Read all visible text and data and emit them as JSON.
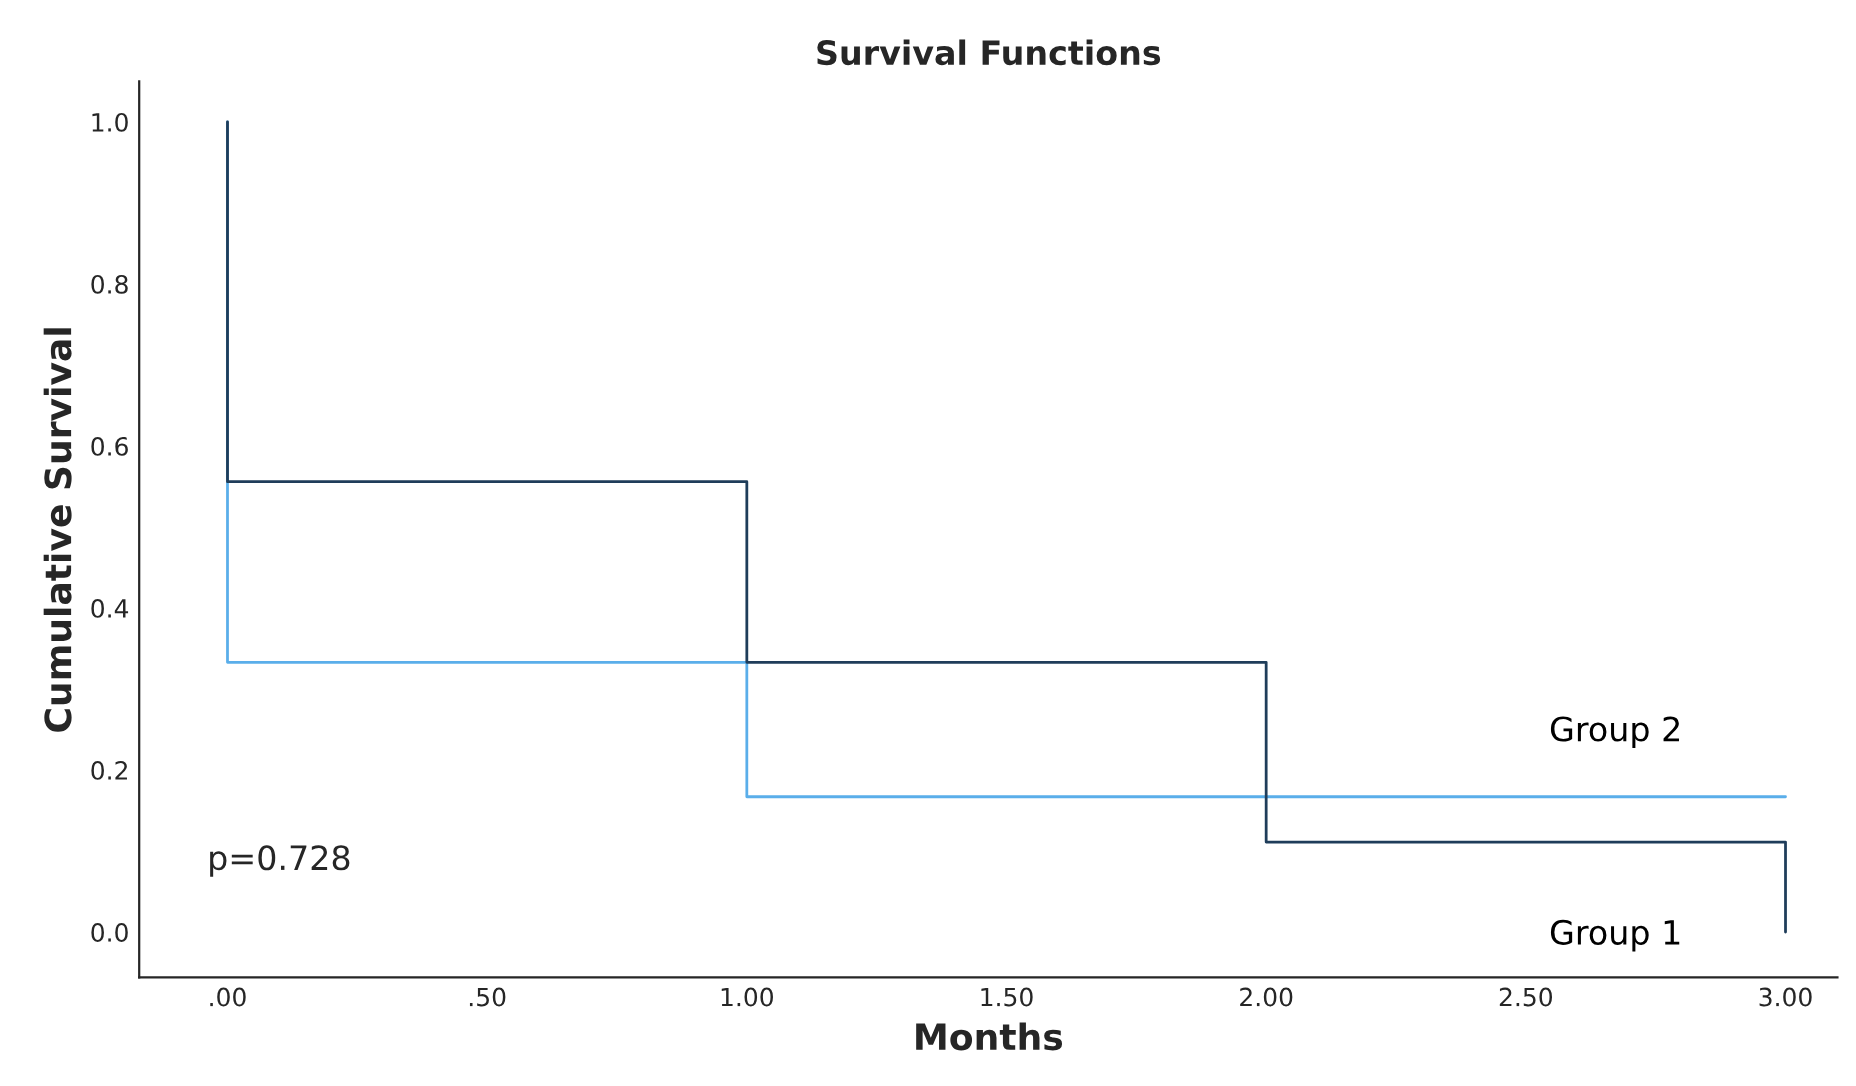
{
  "chart_data": {
    "type": "step",
    "title": "Survival Functions",
    "xlabel": "Months",
    "ylabel": "Cumulative Survival",
    "series": [
      {
        "name": "Group 1",
        "color": "#1f3d5a",
        "x": [
          0,
          0,
          1,
          2,
          3
        ],
        "values": [
          1.0,
          0.556,
          0.333,
          0.111,
          0.0
        ]
      },
      {
        "name": "Group 2",
        "color": "#5aaeea",
        "x": [
          0,
          0,
          1,
          3
        ],
        "values": [
          1.0,
          0.333,
          0.167,
          0.167
        ]
      }
    ],
    "annotations": [
      "p=0.728"
    ],
    "xlim": [
      -0.17,
      3.1
    ],
    "ylim": [
      -0.056,
      1.05
    ],
    "xticks": [
      {
        "value": 0,
        "label": ".00"
      },
      {
        "value": 0.5,
        "label": ".50"
      },
      {
        "value": 1,
        "label": "1.00"
      },
      {
        "value": 1.5,
        "label": "1.50"
      },
      {
        "value": 2,
        "label": "2.00"
      },
      {
        "value": 2.5,
        "label": "2.50"
      },
      {
        "value": 3,
        "label": "3.00"
      }
    ],
    "yticks": [
      {
        "value": 0,
        "label": "0.0"
      },
      {
        "value": 0.2,
        "label": "0.2"
      },
      {
        "value": 0.4,
        "label": "0.4"
      },
      {
        "value": 0.6,
        "label": "0.6"
      },
      {
        "value": 0.8,
        "label": "0.8"
      },
      {
        "value": 1.0,
        "label": "1.0"
      }
    ],
    "grid": false,
    "legend": false
  }
}
